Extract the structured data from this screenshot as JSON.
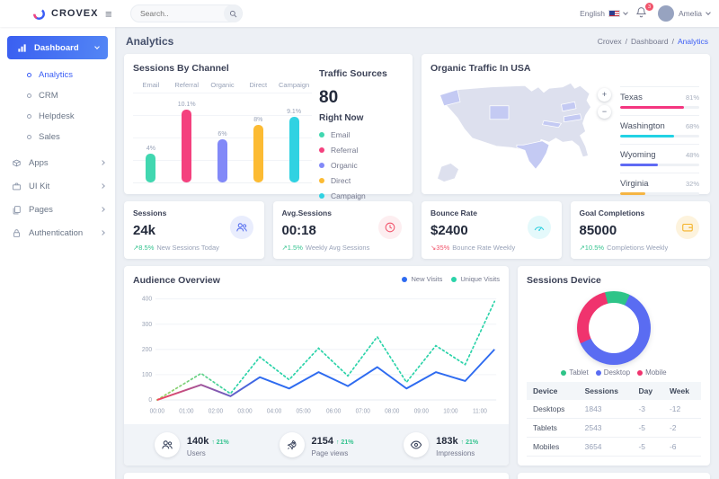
{
  "navbar": {
    "brand": "CROVEX",
    "search_placeholder": "Search..",
    "language": "English",
    "notification_count": "3",
    "user_name": "Amelia"
  },
  "sidebar": {
    "dashboard": "Dashboard",
    "submenu": [
      "Analytics",
      "CRM",
      "Helpdesk",
      "Sales"
    ],
    "groups": [
      "Apps",
      "UI Kit",
      "Pages",
      "Authentication"
    ]
  },
  "page": {
    "title": "Analytics",
    "breadcrumb": [
      "Crovex",
      "Dashboard",
      "Analytics"
    ],
    "breadcrumb_sep": "/"
  },
  "channel": {
    "title": "Sessions By Channel",
    "chart_data": {
      "type": "bar",
      "categories": [
        "Email",
        "Referral",
        "Organic",
        "Direct",
        "Campaign"
      ],
      "values": [
        4,
        10.1,
        6,
        8,
        9.1
      ],
      "value_labels": [
        "4%",
        "10.1%",
        "6%",
        "8%",
        "9.1%"
      ],
      "colors": [
        "#41d7b0",
        "#f4417e",
        "#8289f8",
        "#fcbb33",
        "#30d2e2"
      ]
    }
  },
  "traffic": {
    "title": "Traffic Sources",
    "count": "80",
    "subtitle": "Right Now",
    "legend": [
      {
        "label": "Email",
        "color": "#41d7b0"
      },
      {
        "label": "Referral",
        "color": "#f4417e"
      },
      {
        "label": "Organic",
        "color": "#8289f8"
      },
      {
        "label": "Direct",
        "color": "#fcbb33"
      },
      {
        "label": "Campaign",
        "color": "#30d2e2"
      }
    ]
  },
  "usa": {
    "title": "Organic Traffic In USA",
    "zoom_in": "+",
    "zoom_out": "−",
    "regions": [
      {
        "label": "Texas",
        "pct": 81,
        "pct_label": "81%",
        "color": "#f4357f"
      },
      {
        "label": "Washington",
        "pct": 68,
        "pct_label": "68%",
        "color": "#22d2e4"
      },
      {
        "label": "Wyoming",
        "pct": 48,
        "pct_label": "48%",
        "color": "#5f6af4"
      },
      {
        "label": "Virginia",
        "pct": 32,
        "pct_label": "32%",
        "color": "#f5b544"
      }
    ]
  },
  "stats": [
    {
      "title": "Sessions",
      "value": "24k",
      "delta": "↗8.5%",
      "trend": "up",
      "desc": "New Sessions Today",
      "icon": "users",
      "icon_color": "#5b73f0",
      "icon_bg": "#e9edfd"
    },
    {
      "title": "Avg.Sessions",
      "value": "00:18",
      "delta": "↗1.5%",
      "trend": "up",
      "desc": "Weekly Avg Sessions",
      "icon": "clock",
      "icon_color": "#f1556c",
      "icon_bg": "#fdeef0"
    },
    {
      "title": "Bounce Rate",
      "value": "$2400",
      "delta": "↘35%",
      "trend": "down",
      "desc": "Bounce Rate Weekly",
      "icon": "gauge",
      "icon_color": "#2fd0e0",
      "icon_bg": "#e4f9fb"
    },
    {
      "title": "Goal Completions",
      "value": "85000",
      "delta": "↗10.5%",
      "trend": "up",
      "desc": "Completions Weekly",
      "icon": "wallet",
      "icon_color": "#f5b225",
      "icon_bg": "#fdf3dd"
    }
  ],
  "audience": {
    "title": "Audience Overview",
    "chart_data": {
      "type": "line",
      "x_labels": [
        "00:00",
        "01:00",
        "02:00",
        "03:00",
        "04:00",
        "05:00",
        "06:00",
        "07:00",
        "08:00",
        "09:00",
        "10:00",
        "11:00"
      ],
      "y_tick_labels": [
        "400",
        "300",
        "200",
        "100",
        "0"
      ],
      "ylim": [
        0,
        400
      ],
      "legend_position": "top-right",
      "series": [
        {
          "name": "New Visits",
          "color": "#2e6bf0",
          "color_start": "#f4435c",
          "dashed": false,
          "points": [
            [
              0,
              0
            ],
            [
              1.5,
              60
            ],
            [
              2.5,
              15
            ],
            [
              3.5,
              90
            ],
            [
              4.5,
              45
            ],
            [
              5.5,
              110
            ],
            [
              6.5,
              55
            ],
            [
              7.5,
              130
            ],
            [
              8.5,
              45
            ],
            [
              9.5,
              110
            ],
            [
              10.5,
              75
            ],
            [
              11.5,
              200
            ]
          ]
        },
        {
          "name": "Unique Visits",
          "color": "#2bd3a9",
          "color_start": "#a5cf5f",
          "dashed": true,
          "points": [
            [
              0,
              0
            ],
            [
              1.5,
              105
            ],
            [
              2.5,
              25
            ],
            [
              3.5,
              170
            ],
            [
              4.5,
              80
            ],
            [
              5.5,
              205
            ],
            [
              6.5,
              95
            ],
            [
              7.5,
              250
            ],
            [
              8.5,
              70
            ],
            [
              9.5,
              215
            ],
            [
              10.5,
              140
            ],
            [
              11.5,
              390
            ]
          ]
        }
      ]
    },
    "metrics": [
      {
        "value": "140k",
        "delta": "↑ 21%",
        "label": "Users",
        "icon": "users"
      },
      {
        "value": "2154",
        "delta": "↑ 21%",
        "label": "Page views",
        "icon": "rocket"
      },
      {
        "value": "183k",
        "delta": "↑ 21%",
        "label": "Impressions",
        "icon": "eye"
      }
    ]
  },
  "devices": {
    "title": "Sessions Device",
    "chart_data": {
      "type": "pie",
      "slices": [
        {
          "label": "Tablet",
          "color": "#2ec488",
          "pct": 11
        },
        {
          "label": "Desktop",
          "color": "#5a6cf2",
          "pct": 61
        },
        {
          "label": "Mobile",
          "color": "#f0336e",
          "pct": 28
        }
      ]
    },
    "table": {
      "headers": [
        "Device",
        "Sessions",
        "Day",
        "Week"
      ],
      "rows": [
        [
          "Desktops",
          "1843",
          "-3",
          "-12"
        ],
        [
          "Tablets",
          "2543",
          "-5",
          "-2"
        ],
        [
          "Mobiles",
          "3654",
          "-5",
          "-6"
        ]
      ]
    }
  }
}
